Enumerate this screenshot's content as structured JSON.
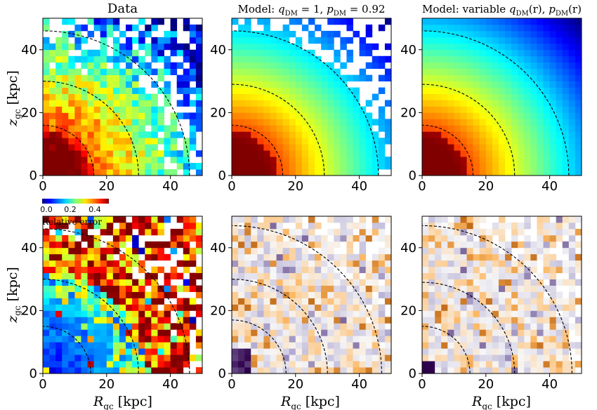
{
  "figure": {
    "colorbar": {
      "ticks": [
        "0.0",
        "0.2",
        "0.4"
      ],
      "label": "Relative error"
    },
    "rows": [
      {
        "ylabel_main": "z",
        "ylabel_sub": "gc",
        "ylabel_unit": " [kpc]"
      },
      {
        "ylabel_main": "z",
        "ylabel_sub": "gc",
        "ylabel_unit": " [kpc]"
      }
    ],
    "xlabel_main": "R",
    "xlabel_sub": "gc",
    "xlabel_unit": " [kpc]"
  },
  "chart_data": [
    {
      "type": "heatmap",
      "panel": "top-left",
      "title": "Data",
      "colormap": "jet",
      "xlim": [
        0,
        50
      ],
      "ylim": [
        0,
        50
      ],
      "bins": 25,
      "xticks": [
        "0",
        "20",
        "40"
      ],
      "yticks": [
        "0",
        "20",
        "40"
      ],
      "contour_radii": [
        16,
        30,
        46
      ],
      "style": "noisy-data",
      "show_xlabel": false,
      "show_ylabel": true
    },
    {
      "type": "heatmap",
      "panel": "top-middle",
      "title": "Model: q_DM = 1, p_DM = 0.92",
      "title_parts": [
        "Model: ",
        "q",
        "DM",
        " = 1, ",
        "p",
        "DM",
        " = 0.92"
      ],
      "colormap": "jet",
      "xlim": [
        0,
        50
      ],
      "ylim": [
        0,
        50
      ],
      "bins": 25,
      "xticks": [
        "0",
        "20",
        "40"
      ],
      "yticks": [
        "0",
        "20",
        "40"
      ],
      "contour_radii": [
        16,
        29,
        46
      ],
      "style": "smooth-model-masked",
      "show_xlabel": false,
      "show_ylabel": false
    },
    {
      "type": "heatmap",
      "panel": "top-right",
      "title": "Model: variable q_DM(r), p_DM(r)",
      "title_parts": [
        "Model: variable ",
        "q",
        "DM",
        "(r), ",
        "p",
        "DM",
        "(r)"
      ],
      "colormap": "jet",
      "xlim": [
        0,
        50
      ],
      "ylim": [
        0,
        50
      ],
      "bins": 25,
      "xticks": [
        "0",
        "20",
        "40"
      ],
      "yticks": [
        "0",
        "20",
        "40"
      ],
      "contour_radii": [
        16,
        29,
        46
      ],
      "style": "smooth-model",
      "show_xlabel": false,
      "show_ylabel": false
    },
    {
      "type": "heatmap",
      "panel": "bottom-left",
      "title": "",
      "colormap": "jet",
      "value_label": "Relative error",
      "value_range": [
        0.0,
        0.5
      ],
      "xlim": [
        0,
        50
      ],
      "ylim": [
        0,
        50
      ],
      "bins": 25,
      "xticks": [
        "0",
        "20",
        "40"
      ],
      "yticks": [
        "0",
        "20",
        "40"
      ],
      "contour_radii": [
        15,
        30,
        46
      ],
      "style": "relative-error",
      "show_xlabel": true,
      "show_ylabel": true
    },
    {
      "type": "heatmap",
      "panel": "bottom-middle",
      "title": "",
      "colormap": "PuOr",
      "xlim": [
        0,
        50
      ],
      "ylim": [
        0,
        50
      ],
      "bins": 25,
      "xticks": [
        "0",
        "20",
        "40"
      ],
      "yticks": [
        "0",
        "20",
        "40"
      ],
      "contour_radii": [
        17,
        30,
        47
      ],
      "style": "residual",
      "show_xlabel": true,
      "show_ylabel": false
    },
    {
      "type": "heatmap",
      "panel": "bottom-right",
      "title": "",
      "colormap": "PuOr",
      "xlim": [
        0,
        50
      ],
      "ylim": [
        0,
        50
      ],
      "bins": 25,
      "xticks": [
        "0",
        "20",
        "40"
      ],
      "yticks": [
        "0",
        "20",
        "40"
      ],
      "contour_radii": [
        15,
        29,
        47
      ],
      "style": "residual-b",
      "show_xlabel": true,
      "show_ylabel": false
    }
  ]
}
